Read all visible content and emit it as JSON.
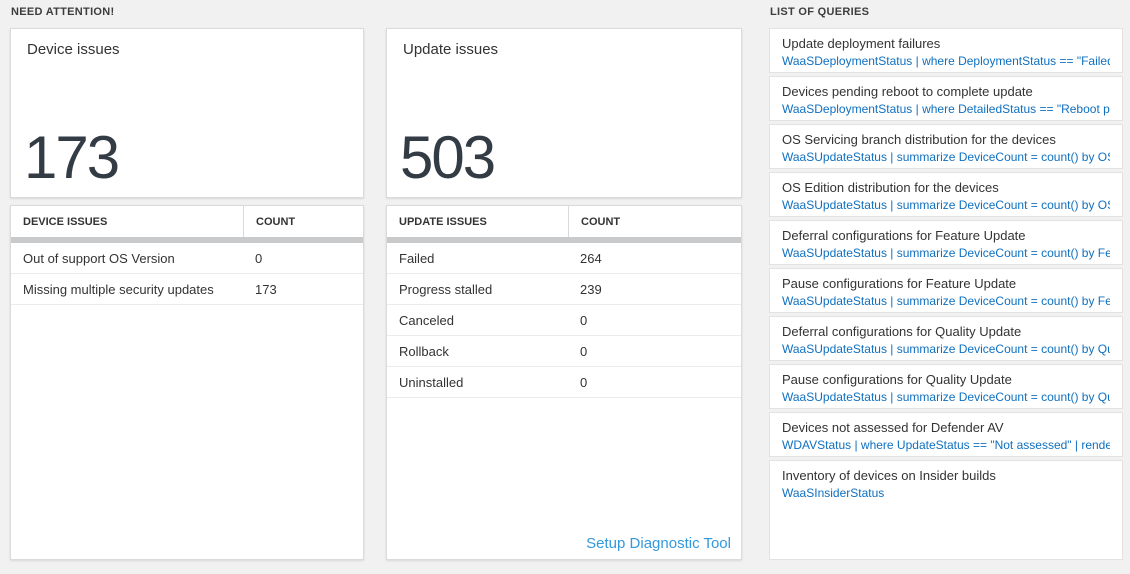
{
  "colors": {
    "page_background": "#f1f1f1",
    "card_background": "#ffffff",
    "big_number": "#333b44",
    "query_link_blue": "#0f70c0",
    "setup_link_blue": "#3399dd",
    "table_divider_bar": "#c8cacc"
  },
  "sections": {
    "need_attention_label": "NEED ATTENTION!",
    "queries_label": "LIST OF QUERIES"
  },
  "device_card": {
    "title": "Device issues",
    "count": "173"
  },
  "update_card": {
    "title": "Update issues",
    "count": "503"
  },
  "device_table": {
    "headers": [
      "DEVICE ISSUES",
      "COUNT"
    ],
    "rows": [
      [
        "Out of support OS Version",
        "0"
      ],
      [
        "Missing multiple security updates",
        "173"
      ]
    ]
  },
  "update_table": {
    "headers": [
      "UPDATE ISSUES",
      "COUNT"
    ],
    "rows": [
      [
        "Failed",
        "264"
      ],
      [
        "Progress stalled",
        "239"
      ],
      [
        "Canceled",
        "0"
      ],
      [
        "Rollback",
        "0"
      ],
      [
        "Uninstalled",
        "0"
      ]
    ],
    "footer_link": "Setup Diagnostic Tool"
  },
  "queries_list": [
    {
      "title": "Update deployment failures",
      "query": "WaaSDeploymentStatus | where DeploymentStatus == \"Failed\" |..."
    },
    {
      "title": "Devices pending reboot to complete update",
      "query": "WaaSDeploymentStatus | where DetailedStatus == \"Reboot pend..."
    },
    {
      "title": "OS Servicing branch distribution for the devices",
      "query": "WaaSUpdateStatus | summarize DeviceCount = count() by OSSer..."
    },
    {
      "title": "OS Edition distribution for the devices",
      "query": "WaaSUpdateStatus | summarize DeviceCount = count() by OSEdit..."
    },
    {
      "title": "Deferral configurations for Feature Update",
      "query": "WaaSUpdateStatus | summarize DeviceCount = count() by Featur..."
    },
    {
      "title": "Pause configurations for Feature Update",
      "query": "WaaSUpdateStatus | summarize DeviceCount = count() by Featur..."
    },
    {
      "title": "Deferral configurations for Quality Update",
      "query": "WaaSUpdateStatus | summarize DeviceCount = count() by Qualit..."
    },
    {
      "title": "Pause configurations for Quality Update",
      "query": "WaaSUpdateStatus | summarize DeviceCount = count() by Qualit..."
    },
    {
      "title": "Devices not assessed for Defender AV",
      "query": "WDAVStatus | where UpdateStatus == \"Not assessed\" | render ta..."
    },
    {
      "title": "Inventory of devices on Insider builds",
      "query": "WaaSInsiderStatus"
    }
  ]
}
